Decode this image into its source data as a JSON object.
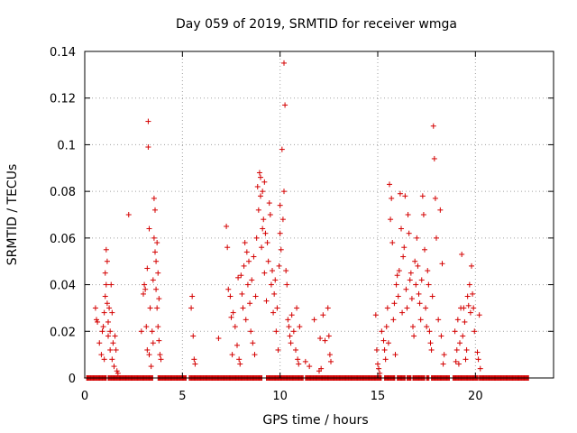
{
  "chart_data": {
    "type": "scatter",
    "title": "Day 059 of 2019, SRMTID for receiver wmga",
    "xlabel": "GPS time / hours",
    "ylabel": "SRMTID / TECUs",
    "xlim": [
      0,
      24
    ],
    "ylim": [
      0,
      0.14
    ],
    "xticks": [
      0,
      5,
      10,
      15,
      20
    ],
    "xtick_labels": [
      "0",
      "5",
      "10",
      "15",
      "20"
    ],
    "yticks": [
      0,
      0.02,
      0.04,
      0.06,
      0.08,
      0.1,
      0.12,
      0.14
    ],
    "ytick_labels": [
      "0",
      "0.02",
      "0.04",
      "0.06",
      "0.08",
      "0.1",
      "0.12",
      "0.14"
    ],
    "grid": true,
    "marker": "+",
    "series": [
      {
        "name": "SRMTID",
        "color": "#d40000",
        "points": [
          [
            0.55,
            0.03
          ],
          [
            0.6,
            0.025
          ],
          [
            0.65,
            0.024
          ],
          [
            0.75,
            0.015
          ],
          [
            0.85,
            0.01
          ],
          [
            0.9,
            0.02
          ],
          [
            0.95,
            0.022
          ],
          [
            1.0,
            0.028
          ],
          [
            1.0,
            0.008
          ],
          [
            1.05,
            0.035
          ],
          [
            1.05,
            0.045
          ],
          [
            1.1,
            0.055
          ],
          [
            1.1,
            0.04
          ],
          [
            1.15,
            0.05
          ],
          [
            1.15,
            0.032
          ],
          [
            1.2,
            0.024
          ],
          [
            1.2,
            0.018
          ],
          [
            1.25,
            0.03
          ],
          [
            1.3,
            0.02
          ],
          [
            1.3,
            0.012
          ],
          [
            1.35,
            0.04
          ],
          [
            1.4,
            0.008
          ],
          [
            1.4,
            0.028
          ],
          [
            1.45,
            0.015
          ],
          [
            1.5,
            0.005
          ],
          [
            1.55,
            0.018
          ],
          [
            1.6,
            0.012
          ],
          [
            1.65,
            0.003
          ],
          [
            1.7,
            0.002
          ],
          [
            2.25,
            0.07
          ],
          [
            2.9,
            0.02
          ],
          [
            3.0,
            0.036
          ],
          [
            3.05,
            0.04
          ],
          [
            3.1,
            0.038
          ],
          [
            3.15,
            0.022
          ],
          [
            3.2,
            0.047
          ],
          [
            3.2,
            0.012
          ],
          [
            3.25,
            0.11
          ],
          [
            3.25,
            0.099
          ],
          [
            3.3,
            0.064
          ],
          [
            3.3,
            0.01
          ],
          [
            3.35,
            0.03
          ],
          [
            3.4,
            0.005
          ],
          [
            3.45,
            0.02
          ],
          [
            3.5,
            0.042
          ],
          [
            3.5,
            0.015
          ],
          [
            3.55,
            0.077
          ],
          [
            3.55,
            0.06
          ],
          [
            3.6,
            0.072
          ],
          [
            3.6,
            0.054
          ],
          [
            3.65,
            0.05
          ],
          [
            3.65,
            0.038
          ],
          [
            3.7,
            0.058
          ],
          [
            3.7,
            0.03
          ],
          [
            3.75,
            0.045
          ],
          [
            3.75,
            0.022
          ],
          [
            3.8,
            0.034
          ],
          [
            3.8,
            0.016
          ],
          [
            3.85,
            0.01
          ],
          [
            3.9,
            0.008
          ],
          [
            5.45,
            0.03
          ],
          [
            5.5,
            0.035
          ],
          [
            5.55,
            0.018
          ],
          [
            5.6,
            0.008
          ],
          [
            5.65,
            0.006
          ],
          [
            6.85,
            0.017
          ],
          [
            7.25,
            0.065
          ],
          [
            7.3,
            0.056
          ],
          [
            7.35,
            0.038
          ],
          [
            7.45,
            0.035
          ],
          [
            7.5,
            0.026
          ],
          [
            7.55,
            0.01
          ],
          [
            7.6,
            0.028
          ],
          [
            7.7,
            0.022
          ],
          [
            7.8,
            0.014
          ],
          [
            7.85,
            0.043
          ],
          [
            7.9,
            0.008
          ],
          [
            7.95,
            0.006
          ],
          [
            8.0,
            0.044
          ],
          [
            8.05,
            0.036
          ],
          [
            8.1,
            0.03
          ],
          [
            8.15,
            0.048
          ],
          [
            8.2,
            0.058
          ],
          [
            8.25,
            0.025
          ],
          [
            8.3,
            0.054
          ],
          [
            8.35,
            0.04
          ],
          [
            8.4,
            0.05
          ],
          [
            8.45,
            0.032
          ],
          [
            8.5,
            0.02
          ],
          [
            8.55,
            0.042
          ],
          [
            8.6,
            0.015
          ],
          [
            8.65,
            0.052
          ],
          [
            8.7,
            0.01
          ],
          [
            8.75,
            0.035
          ],
          [
            8.8,
            0.06
          ],
          [
            8.85,
            0.082
          ],
          [
            8.9,
            0.072
          ],
          [
            8.95,
            0.088
          ],
          [
            9.0,
            0.086
          ],
          [
            9.0,
            0.078
          ],
          [
            9.05,
            0.056
          ],
          [
            9.1,
            0.08
          ],
          [
            9.1,
            0.064
          ],
          [
            9.15,
            0.068
          ],
          [
            9.2,
            0.045
          ],
          [
            9.2,
            0.084
          ],
          [
            9.25,
            0.062
          ],
          [
            9.3,
            0.033
          ],
          [
            9.35,
            0.058
          ],
          [
            9.4,
            0.05
          ],
          [
            9.45,
            0.075
          ],
          [
            9.5,
            0.07
          ],
          [
            9.55,
            0.04
          ],
          [
            9.6,
            0.046
          ],
          [
            9.65,
            0.028
          ],
          [
            9.7,
            0.036
          ],
          [
            9.75,
            0.042
          ],
          [
            9.8,
            0.02
          ],
          [
            9.85,
            0.03
          ],
          [
            9.9,
            0.012
          ],
          [
            9.95,
            0.048
          ],
          [
            10.0,
            0.074
          ],
          [
            10.0,
            0.062
          ],
          [
            10.05,
            0.055
          ],
          [
            10.1,
            0.098
          ],
          [
            10.15,
            0.068
          ],
          [
            10.2,
            0.08
          ],
          [
            10.2,
            0.135
          ],
          [
            10.25,
            0.117
          ],
          [
            10.3,
            0.046
          ],
          [
            10.35,
            0.04
          ],
          [
            10.4,
            0.025
          ],
          [
            10.45,
            0.022
          ],
          [
            10.5,
            0.018
          ],
          [
            10.55,
            0.015
          ],
          [
            10.6,
            0.027
          ],
          [
            10.7,
            0.02
          ],
          [
            10.8,
            0.012
          ],
          [
            10.85,
            0.03
          ],
          [
            10.9,
            0.008
          ],
          [
            10.95,
            0.006
          ],
          [
            11.0,
            0.022
          ],
          [
            11.3,
            0.007
          ],
          [
            11.5,
            0.005
          ],
          [
            11.75,
            0.025
          ],
          [
            12.0,
            0.003
          ],
          [
            12.05,
            0.017
          ],
          [
            12.1,
            0.004
          ],
          [
            12.2,
            0.027
          ],
          [
            12.3,
            0.016
          ],
          [
            12.45,
            0.03
          ],
          [
            12.5,
            0.018
          ],
          [
            12.55,
            0.01
          ],
          [
            12.6,
            0.007
          ],
          [
            14.9,
            0.027
          ],
          [
            14.95,
            0.012
          ],
          [
            15.0,
            0.006
          ],
          [
            15.05,
            0.004
          ],
          [
            15.1,
            0.002
          ],
          [
            15.2,
            0.02
          ],
          [
            15.3,
            0.016
          ],
          [
            15.35,
            0.012
          ],
          [
            15.4,
            0.008
          ],
          [
            15.45,
            0.022
          ],
          [
            15.5,
            0.03
          ],
          [
            15.55,
            0.015
          ],
          [
            15.6,
            0.083
          ],
          [
            15.65,
            0.068
          ],
          [
            15.7,
            0.077
          ],
          [
            15.75,
            0.058
          ],
          [
            15.8,
            0.025
          ],
          [
            15.85,
            0.032
          ],
          [
            15.9,
            0.01
          ],
          [
            15.95,
            0.04
          ],
          [
            16.0,
            0.044
          ],
          [
            16.05,
            0.035
          ],
          [
            16.1,
            0.046
          ],
          [
            16.15,
            0.079
          ],
          [
            16.2,
            0.064
          ],
          [
            16.25,
            0.028
          ],
          [
            16.3,
            0.052
          ],
          [
            16.35,
            0.056
          ],
          [
            16.4,
            0.078
          ],
          [
            16.45,
            0.038
          ],
          [
            16.5,
            0.03
          ],
          [
            16.55,
            0.07
          ],
          [
            16.6,
            0.062
          ],
          [
            16.65,
            0.042
          ],
          [
            16.7,
            0.045
          ],
          [
            16.75,
            0.034
          ],
          [
            16.8,
            0.022
          ],
          [
            16.85,
            0.018
          ],
          [
            16.9,
            0.05
          ],
          [
            16.95,
            0.04
          ],
          [
            17.0,
            0.06
          ],
          [
            17.05,
            0.048
          ],
          [
            17.1,
            0.036
          ],
          [
            17.15,
            0.032
          ],
          [
            17.2,
            0.025
          ],
          [
            17.25,
            0.042
          ],
          [
            17.3,
            0.078
          ],
          [
            17.35,
            0.07
          ],
          [
            17.4,
            0.055
          ],
          [
            17.45,
            0.03
          ],
          [
            17.5,
            0.022
          ],
          [
            17.55,
            0.046
          ],
          [
            17.6,
            0.04
          ],
          [
            17.65,
            0.02
          ],
          [
            17.7,
            0.015
          ],
          [
            17.75,
            0.012
          ],
          [
            17.8,
            0.035
          ],
          [
            17.85,
            0.108
          ],
          [
            17.9,
            0.094
          ],
          [
            17.95,
            0.077
          ],
          [
            18.0,
            0.06
          ],
          [
            18.1,
            0.025
          ],
          [
            18.2,
            0.072
          ],
          [
            18.25,
            0.018
          ],
          [
            18.3,
            0.049
          ],
          [
            18.35,
            0.006
          ],
          [
            18.4,
            0.01
          ],
          [
            18.95,
            0.02
          ],
          [
            19.0,
            0.007
          ],
          [
            19.05,
            0.012
          ],
          [
            19.1,
            0.025
          ],
          [
            19.15,
            0.006
          ],
          [
            19.2,
            0.015
          ],
          [
            19.25,
            0.03
          ],
          [
            19.3,
            0.053
          ],
          [
            19.35,
            0.018
          ],
          [
            19.4,
            0.03
          ],
          [
            19.45,
            0.024
          ],
          [
            19.5,
            0.008
          ],
          [
            19.55,
            0.012
          ],
          [
            19.6,
            0.035
          ],
          [
            19.65,
            0.031
          ],
          [
            19.7,
            0.04
          ],
          [
            19.75,
            0.028
          ],
          [
            19.8,
            0.048
          ],
          [
            19.85,
            0.036
          ],
          [
            19.9,
            0.03
          ],
          [
            19.95,
            0.02
          ],
          [
            20.1,
            0.011
          ],
          [
            20.15,
            0.008
          ],
          [
            20.2,
            0.027
          ],
          [
            20.25,
            0.004
          ]
        ],
        "zero_ranges": [
          [
            0.1,
            1.1
          ],
          [
            1.2,
            3.5
          ],
          [
            3.75,
            5.2
          ],
          [
            5.35,
            9.1
          ],
          [
            9.3,
            11.2
          ],
          [
            11.3,
            15.2
          ],
          [
            15.35,
            15.9
          ],
          [
            16.0,
            16.4
          ],
          [
            16.5,
            16.7
          ],
          [
            16.8,
            17.4
          ],
          [
            17.5,
            17.65
          ],
          [
            17.75,
            18.7
          ],
          [
            18.85,
            20.15
          ],
          [
            20.2,
            22.75
          ]
        ]
      }
    ]
  }
}
